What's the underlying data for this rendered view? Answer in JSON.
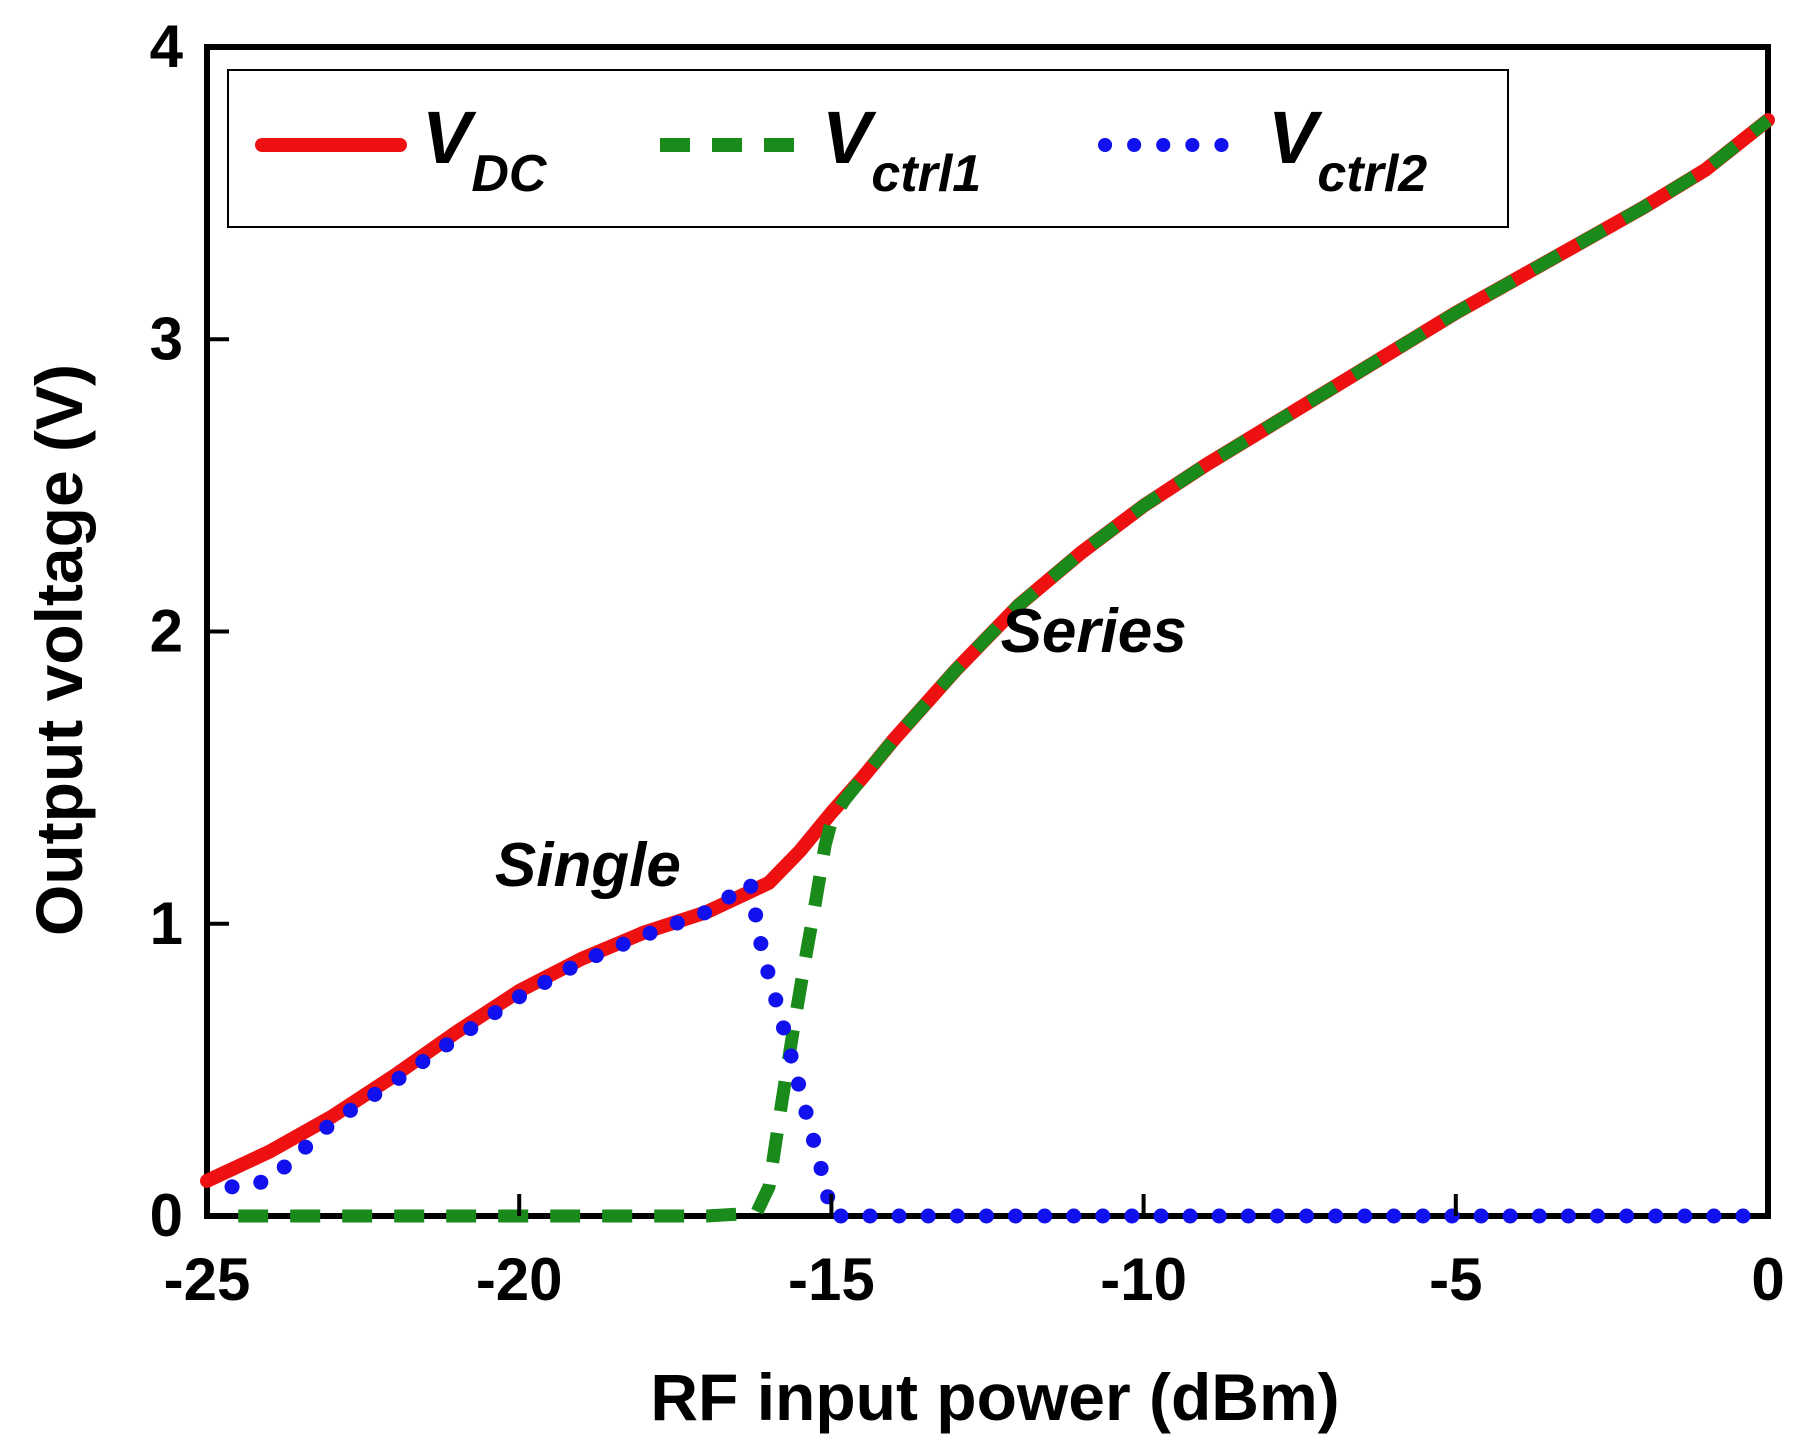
{
  "chart_data": {
    "type": "line",
    "title": "",
    "xlabel": "RF input power (dBm)",
    "ylabel": "Output voltage  (V)",
    "xlim": [
      -25,
      0
    ],
    "ylim": [
      0,
      4
    ],
    "xticks": [
      "-25",
      "-20",
      "-15",
      "-10",
      "-5",
      "0"
    ],
    "yticks": [
      "0",
      "1",
      "2",
      "3",
      "4"
    ],
    "legend_position": "top",
    "grid": false,
    "annotations": [
      {
        "text": "Single",
        "x": -18.9,
        "y": 1.13
      },
      {
        "text": "Series",
        "x": -10.8,
        "y": 1.93
      }
    ],
    "series": [
      {
        "name": "V_DC",
        "legend_main": "V",
        "legend_sub": "DC",
        "color": "#ee1111",
        "style": "solid",
        "x": [
          -25,
          -24,
          -23,
          -22,
          -21,
          -20,
          -19,
          -18,
          -17,
          -16,
          -15.5,
          -15,
          -14.5,
          -14,
          -13,
          -12,
          -11,
          -10,
          -9,
          -8,
          -7,
          -6,
          -5,
          -4,
          -3,
          -2,
          -1,
          0
        ],
        "y": [
          0.12,
          0.22,
          0.34,
          0.48,
          0.63,
          0.77,
          0.88,
          0.97,
          1.04,
          1.14,
          1.25,
          1.38,
          1.5,
          1.63,
          1.87,
          2.09,
          2.27,
          2.43,
          2.57,
          2.7,
          2.83,
          2.96,
          3.09,
          3.21,
          3.33,
          3.45,
          3.58,
          3.75
        ]
      },
      {
        "name": "V_ctrl1",
        "legend_main": "V",
        "legend_sub": "ctrl1",
        "color": "#1a8a1a",
        "style": "dashed",
        "x": [
          -24.5,
          -23,
          -21,
          -19,
          -17,
          -16.2,
          -16.0,
          -15.8,
          -15.6,
          -15.4,
          -15.25,
          -15.1,
          -15.0,
          -14.8,
          -14.5,
          -14.0,
          -13,
          -12,
          -11,
          -10,
          -9,
          -8,
          -7,
          -6,
          -5,
          -4,
          -3,
          -2,
          -1,
          0
        ],
        "y": [
          0.0,
          0.0,
          0.0,
          0.0,
          0.0,
          0.01,
          0.1,
          0.38,
          0.65,
          0.9,
          1.08,
          1.27,
          1.35,
          1.42,
          1.5,
          1.63,
          1.87,
          2.09,
          2.27,
          2.43,
          2.57,
          2.7,
          2.83,
          2.96,
          3.09,
          3.21,
          3.33,
          3.45,
          3.58,
          3.75
        ]
      },
      {
        "name": "V_ctrl2",
        "legend_main": "V",
        "legend_sub": "ctrl2",
        "color": "#1111ee",
        "style": "dotted",
        "x": [
          -24.6,
          -24.0,
          -23.5,
          -23.0,
          -22,
          -21,
          -20,
          -19,
          -18,
          -17,
          -16.3,
          -16.15,
          -16.0,
          -15.85,
          -15.7,
          -15.55,
          -15.4,
          -15.25,
          -15.1,
          -15.0,
          -14.5,
          -14,
          -12,
          -10,
          -8,
          -6,
          -4,
          -2,
          -1,
          0
        ],
        "y": [
          0.1,
          0.12,
          0.22,
          0.32,
          0.46,
          0.61,
          0.75,
          0.87,
          0.96,
          1.04,
          1.14,
          0.95,
          0.82,
          0.71,
          0.59,
          0.47,
          0.35,
          0.23,
          0.11,
          0.0,
          0.0,
          0.0,
          0.0,
          0.0,
          0.0,
          0.0,
          0.0,
          0.0,
          0.0,
          0.0
        ]
      }
    ]
  }
}
